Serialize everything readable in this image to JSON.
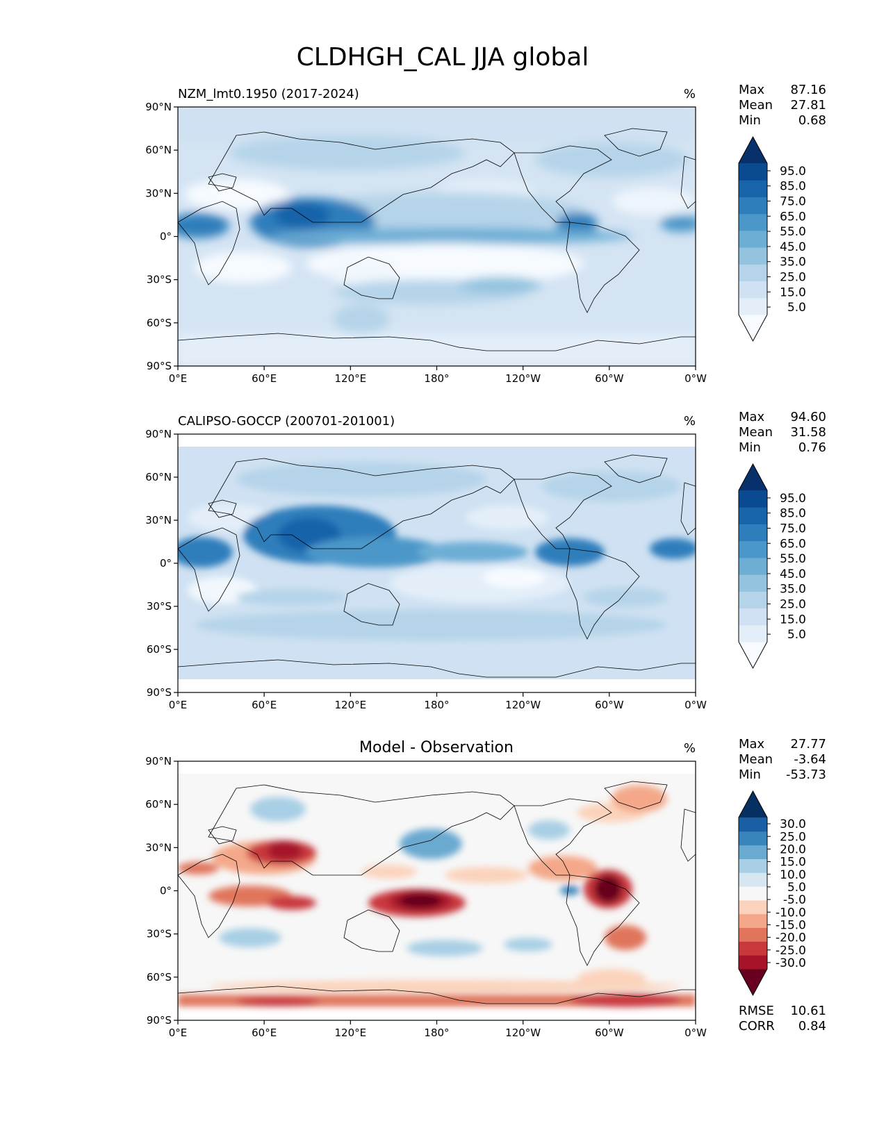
{
  "figure": {
    "title": "CLDHGH_CAL JJA global"
  },
  "axes": {
    "lat_ticks": [
      "90°N",
      "60°N",
      "30°N",
      "0°",
      "30°S",
      "60°S",
      "90°S"
    ],
    "lon_ticks": [
      "0°E",
      "60°E",
      "120°E",
      "180°",
      "120°W",
      "60°W",
      "0°W"
    ]
  },
  "chart_data": [
    {
      "type": "heatmap",
      "title": "NZM_lmt0.1950 (2017-2024)",
      "units": "%",
      "stats": {
        "max_label": "Max",
        "max": "87.16",
        "mean_label": "Mean",
        "mean": "27.81",
        "min_label": "Min",
        "min": "0.68"
      },
      "colorbar": {
        "labels": [
          "95.0",
          "85.0",
          "75.0",
          "65.0",
          "55.0",
          "45.0",
          "35.0",
          "25.0",
          "15.0",
          "5.0"
        ],
        "colors": [
          "#f7fbff",
          "#e3eef9",
          "#cfe1f2",
          "#b5d4e9",
          "#93c3df",
          "#6daed5",
          "#4b97c9",
          "#2f7ebc",
          "#1864aa",
          "#0a4a90",
          "#08306b"
        ]
      },
      "xlim": [
        0,
        360
      ],
      "ylim": [
        -90,
        90
      ]
    },
    {
      "type": "heatmap",
      "title": "CALIPSO-GOCCP (200701-201001)",
      "units": "%",
      "stats": {
        "max_label": "Max",
        "max": "94.60",
        "mean_label": "Mean",
        "mean": "31.58",
        "min_label": "Min",
        "min": "0.76"
      },
      "colorbar": {
        "labels": [
          "95.0",
          "85.0",
          "75.0",
          "65.0",
          "55.0",
          "45.0",
          "35.0",
          "25.0",
          "15.0",
          "5.0"
        ],
        "colors": [
          "#f7fbff",
          "#e3eef9",
          "#cfe1f2",
          "#b5d4e9",
          "#93c3df",
          "#6daed5",
          "#4b97c9",
          "#2f7ebc",
          "#1864aa",
          "#0a4a90",
          "#08306b"
        ]
      },
      "xlim": [
        0,
        360
      ],
      "ylim": [
        -90,
        90
      ]
    },
    {
      "type": "heatmap",
      "title": "Model - Observation",
      "units": "%",
      "stats": {
        "max_label": "Max",
        "max": "27.77",
        "mean_label": "Mean",
        "mean": "-3.64",
        "min_label": "Min",
        "min": "-53.73"
      },
      "colorbar": {
        "labels": [
          "30.0",
          "25.0",
          "20.0",
          "15.0",
          "10.0",
          "5.0",
          "-5.0",
          "-10.0",
          "-15.0",
          "-20.0",
          "-25.0",
          "-30.0"
        ],
        "colors": [
          "#67001f",
          "#a51429",
          "#c8393c",
          "#e0745c",
          "#f4a889",
          "#fbd3bc",
          "#f7f7f7",
          "#d6e7f1",
          "#a8cfe5",
          "#6aa9d0",
          "#3884bb",
          "#1a5ea4",
          "#053061"
        ]
      },
      "metrics": {
        "rmse_label": "RMSE",
        "rmse": "10.61",
        "corr_label": "CORR",
        "corr": "0.84"
      },
      "xlim": [
        0,
        360
      ],
      "ylim": [
        -90,
        90
      ]
    }
  ]
}
